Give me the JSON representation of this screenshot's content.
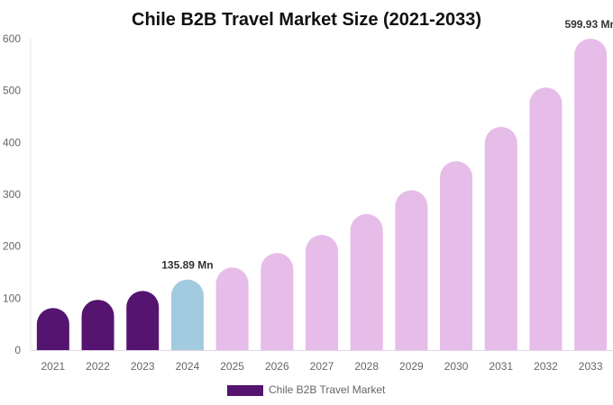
{
  "chart_data": {
    "type": "bar",
    "title": "Chile B2B Travel Market Size (2021-2033)",
    "xlabel": "",
    "ylabel": "",
    "categories": [
      "2021",
      "2022",
      "2023",
      "2024",
      "2025",
      "2026",
      "2027",
      "2028",
      "2029",
      "2030",
      "2031",
      "2032",
      "2033"
    ],
    "series": [
      {
        "name": "Chile B2B Travel Market",
        "values": [
          81,
          97,
          114,
          135.89,
          159,
          187,
          222,
          262,
          308,
          364,
          430,
          506,
          599.93
        ]
      }
    ],
    "data_labels": [
      {
        "category": "2024",
        "text": "135.89 Mn"
      },
      {
        "category": "2033",
        "text": "599.93 Mn"
      }
    ],
    "ylim": [
      0,
      600
    ],
    "yticks": [
      0,
      100,
      200,
      300,
      400,
      500,
      600
    ],
    "grid": false,
    "legend": "bottom",
    "colors": {
      "historical": "#55146f",
      "base_year": "#a3cbe0",
      "forecast": "#e6bce8",
      "legend_swatch": "#55146f"
    }
  }
}
